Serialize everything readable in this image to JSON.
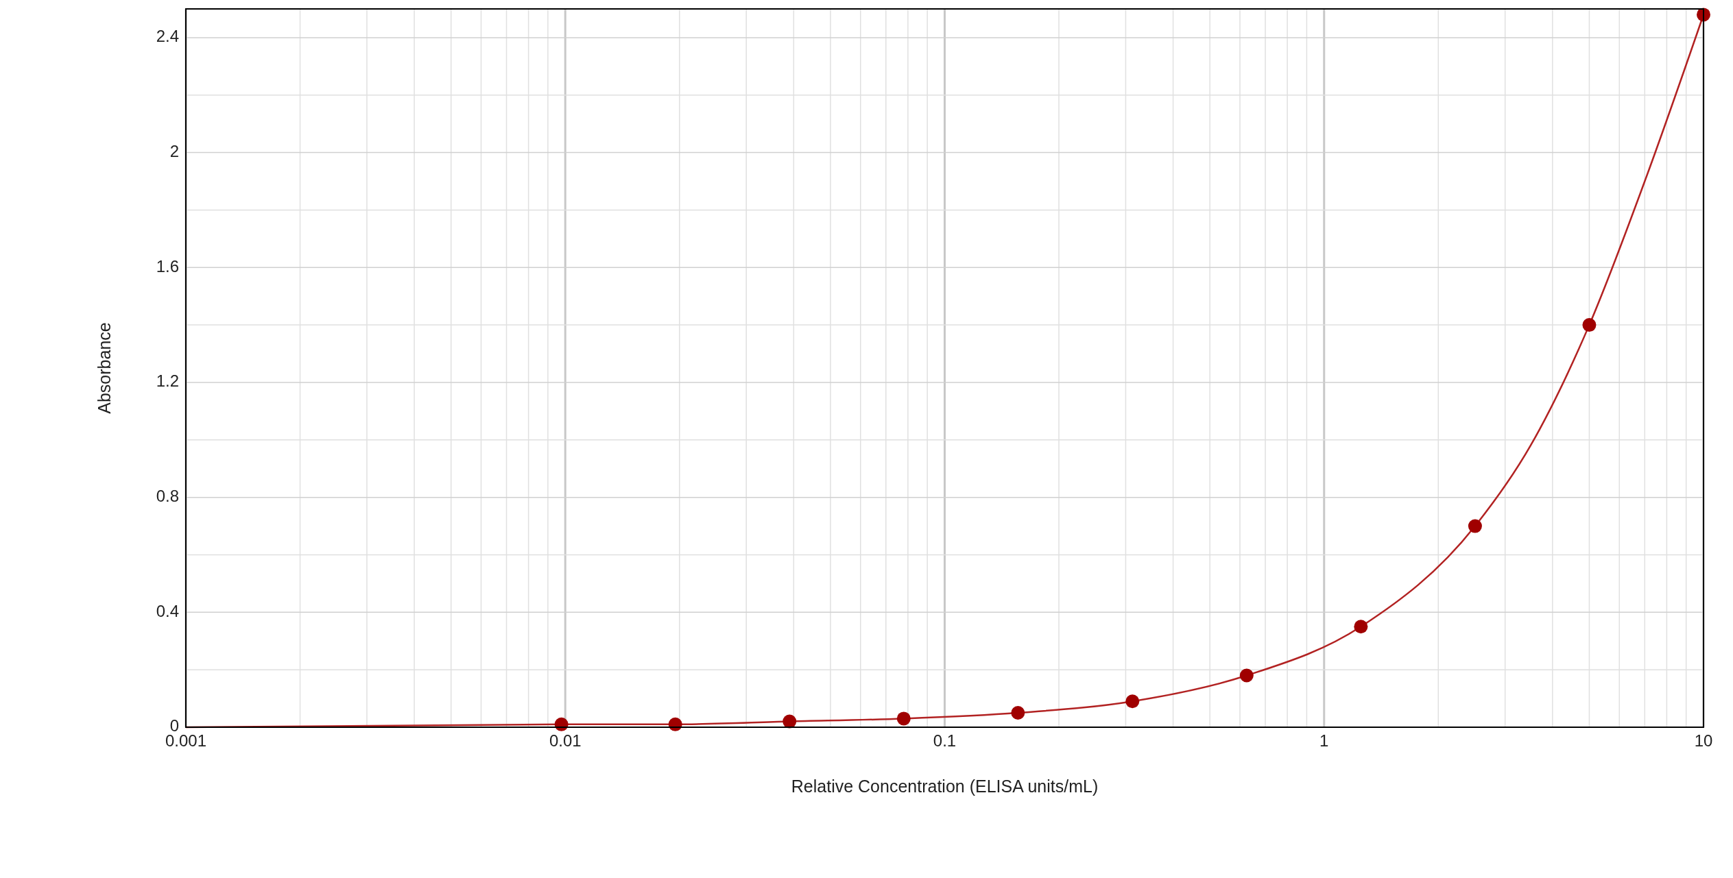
{
  "chart_data": {
    "type": "scatter",
    "xlabel": "Relative Concentration (ELISA units/mL)",
    "ylabel": "Absorbance",
    "log": "x",
    "grid": true,
    "xlim": [
      0.001,
      10
    ],
    "ylim": [
      0,
      2.5
    ],
    "xticks": [
      0.001,
      {
        "value": 0.002,
        "label": null
      },
      {
        "value": 0.003,
        "label": null
      },
      {
        "value": 0.004,
        "label": null
      },
      {
        "value": 0.005,
        "label": null
      },
      {
        "value": 0.006,
        "label": null
      },
      {
        "value": 0.007,
        "label": null
      },
      {
        "value": 0.008,
        "label": null
      },
      {
        "value": 0.009,
        "label": null
      },
      0.01,
      {
        "value": 0.02,
        "label": null
      },
      {
        "value": 0.03,
        "label": null
      },
      {
        "value": 0.04,
        "label": null
      },
      {
        "value": 0.05,
        "label": null
      },
      {
        "value": 0.06,
        "label": null
      },
      {
        "value": 0.07,
        "label": null
      },
      {
        "value": 0.08,
        "label": null
      },
      {
        "value": 0.09,
        "label": null
      },
      0.1,
      {
        "value": 0.2,
        "label": null
      },
      {
        "value": 0.3,
        "label": null
      },
      {
        "value": 0.4,
        "label": null
      },
      {
        "value": 0.5,
        "label": null
      },
      {
        "value": 0.6,
        "label": null
      },
      {
        "value": 0.7,
        "label": null
      },
      {
        "value": 0.8,
        "label": null
      },
      {
        "value": 0.9,
        "label": null
      },
      1,
      {
        "value": 2,
        "label": null
      },
      {
        "value": 3,
        "label": null
      },
      {
        "value": 4,
        "label": null
      },
      {
        "value": 5,
        "label": null
      },
      {
        "value": 6,
        "label": null
      },
      {
        "value": 7,
        "label": null
      },
      {
        "value": 8,
        "label": null
      },
      {
        "value": 9,
        "label": null
      },
      10
    ],
    "yticks": [
      0,
      {
        "value": 0.2,
        "label": null
      },
      0.4,
      {
        "value": 0.6,
        "label": null
      },
      0.8,
      {
        "value": 1.0,
        "label": null
      },
      1.2,
      {
        "value": 1.4,
        "label": null
      },
      1.6,
      {
        "value": 1.8,
        "label": null
      },
      2,
      {
        "value": 2.2,
        "label": null
      },
      2.4
    ],
    "series": [
      {
        "type": "line",
        "color": "#b22222",
        "x": [
          0.001,
          0.00977,
          0.0195,
          0.039,
          0.078,
          0.156,
          0.3125,
          0.625,
          1.25,
          2.5,
          3.5,
          5,
          7,
          10
        ],
        "values": [
          0.0,
          0.01,
          0.01,
          0.02,
          0.03,
          0.05,
          0.09,
          0.18,
          0.35,
          0.7,
          0.98,
          1.4,
          1.9,
          2.48
        ]
      },
      {
        "marker": "circle",
        "color": "#a00000",
        "x": [
          0.00977,
          0.0195,
          0.039,
          0.078,
          0.156,
          0.3125,
          0.625,
          1.25,
          2.5,
          5,
          10
        ],
        "values": [
          0.01,
          0.01,
          0.02,
          0.03,
          0.05,
          0.09,
          0.18,
          0.35,
          0.7,
          1.4,
          2.48
        ]
      }
    ]
  }
}
